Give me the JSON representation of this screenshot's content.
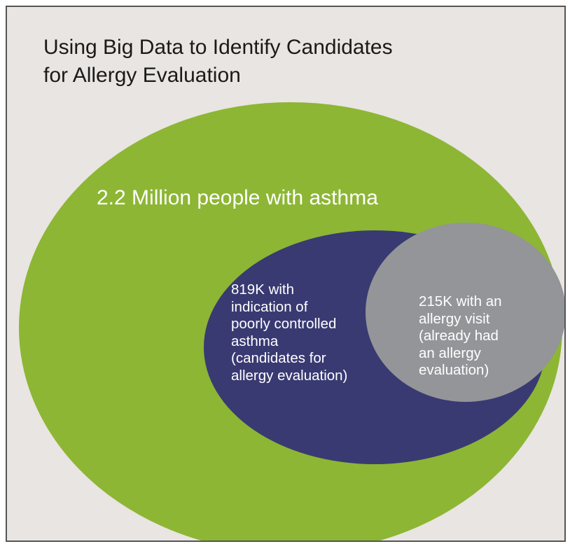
{
  "title": {
    "lines": [
      "Using Big Data to Identify Candidates",
      "for Allergy Evaluation"
    ]
  },
  "sets": {
    "asthma": {
      "label": "2.2 Million people with asthma",
      "color": "#8db634"
    },
    "poorly_controlled": {
      "lines": [
        "819K with",
        "indication of",
        "poorly controlled",
        "asthma",
        "(candidates for",
        "allergy evaluation)"
      ],
      "color": "#393a72"
    },
    "allergy_visit": {
      "lines": [
        "215K with an",
        "allergy visit",
        "(already had",
        "an allergy",
        "evaluation)"
      ],
      "color": "#939598"
    }
  }
}
